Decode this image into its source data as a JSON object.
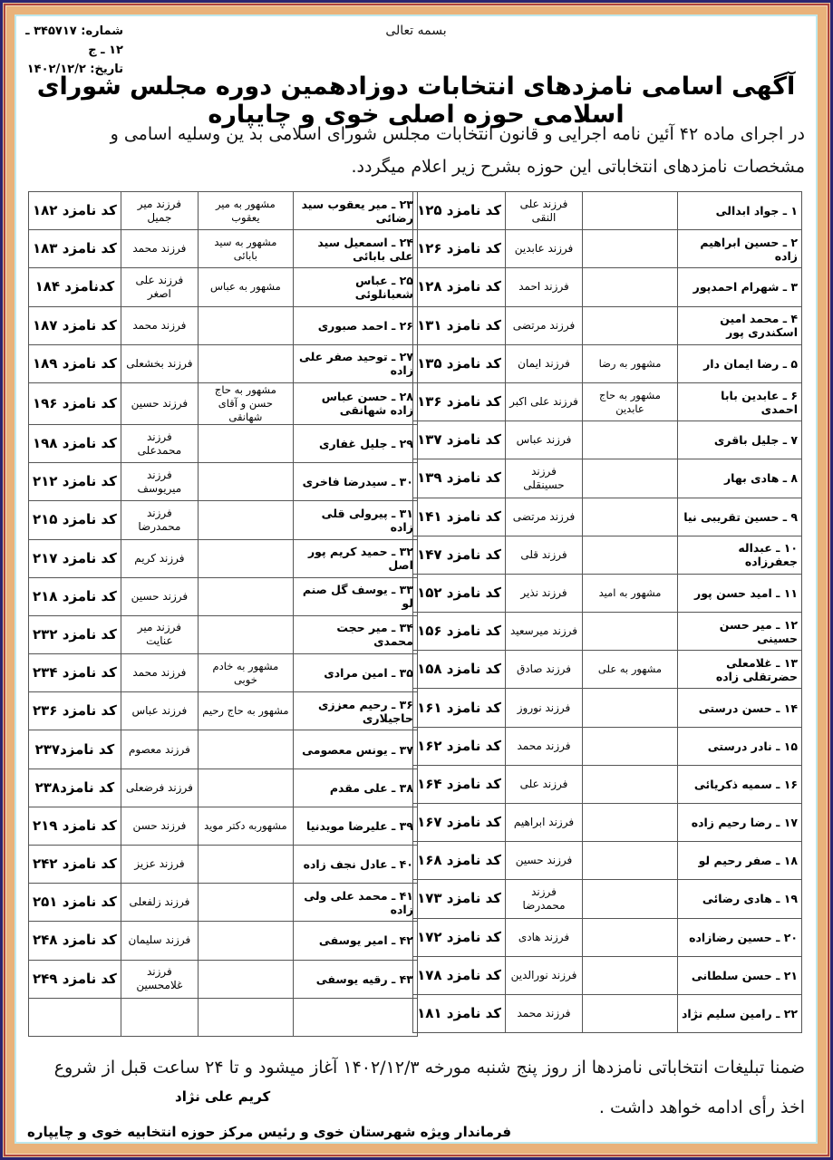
{
  "header": {
    "basmala": "بسمه تعالی",
    "number": "شماره: ۳۴۵۷۱۷ ـ ۱۲ ـ ج",
    "date": "تاریخ: ۱۴۰۲/۱۲/۲",
    "title": "آگهی اسامی نامزدهای انتخابات دوزادهمین دوره مجلس شورای اسلامی حوزه اصلی خوی و چایپاره",
    "intro": "در اجرای ماده ۴۲ آئین نامه اجرایی و قانون انتخابات مجلس شورای اسلامی بد ین وسلیه اسامی و مشخصات نامزدهای انتخاباتی این حوزه بشرح زیر اعلام میگردد."
  },
  "tables": {
    "right": [
      {
        "name": "۱ ـ جواد ابدالی",
        "nick": "",
        "father": "فرزند علی النقی",
        "code": "کد نامزد ۱۲۵"
      },
      {
        "name": "۲ ـ حسین ابراهیم زاده",
        "nick": "",
        "father": "فرزند عابدین",
        "code": "کد نامزد ۱۲۶"
      },
      {
        "name": "۳ ـ شهرام احمدپور",
        "nick": "",
        "father": "فرزند احمد",
        "code": "کد نامزد ۱۲۸"
      },
      {
        "name": "۴ ـ محمد امین اسکندری پور",
        "nick": "",
        "father": "فرزند مرتضی",
        "code": "کد نامزد ۱۳۱"
      },
      {
        "name": "۵ ـ رضا ایمان دار",
        "nick": "مشهور به رضا",
        "father": "فرزند ایمان",
        "code": "کد نامزد ۱۳۵"
      },
      {
        "name": "۶ ـ عابدین بابا احمدی",
        "nick": "مشهور به حاج عابدین",
        "father": "فرزند علی اکبر",
        "code": "کد نامزد ۱۳۶"
      },
      {
        "name": "۷ ـ جلیل باقری",
        "nick": "",
        "father": "فرزند عباس",
        "code": "کد نامزد ۱۳۷"
      },
      {
        "name": "۸ ـ هادی بهار",
        "nick": "",
        "father": "فرزند حسینقلی",
        "code": "کد نامزد ۱۳۹"
      },
      {
        "name": "۹ ـ حسین تقریبی نیا",
        "nick": "",
        "father": "فرزند مرتضی",
        "code": "کد نامزد ۱۴۱"
      },
      {
        "name": "۱۰ ـ عبداله جعفرزاده",
        "nick": "",
        "father": "فرزند قلی",
        "code": "کد نامزد ۱۴۷"
      },
      {
        "name": "۱۱ ـ امید حسن پور",
        "nick": "مشهور به امید",
        "father": "فرزند نذیر",
        "code": "کد نامزد ۱۵۲"
      },
      {
        "name": "۱۲ ـ میر حسن حسینی",
        "nick": "",
        "father": "فرزند میرسعید",
        "code": "کد نامزد ۱۵۶"
      },
      {
        "name": "۱۳ ـ غلامعلی حضرتقلی زاده",
        "nick": "مشهور به علی",
        "father": "فرزند صادق",
        "code": "کد نامزد ۱۵۸"
      },
      {
        "name": "۱۴ ـ حسن درستی",
        "nick": "",
        "father": "فرزند نوروز",
        "code": "کد نامزد ۱۶۱"
      },
      {
        "name": "۱۵ ـ نادر درستی",
        "nick": "",
        "father": "فرزند محمد",
        "code": "کد نامزد ۱۶۲"
      },
      {
        "name": "۱۶ ـ سمیه ذکریائی",
        "nick": "",
        "father": "فرزند علی",
        "code": "کد نامزد ۱۶۴"
      },
      {
        "name": "۱۷ ـ رضا رحیم زاده",
        "nick": "",
        "father": "فرزند ابراهیم",
        "code": "کد نامزد ۱۶۷"
      },
      {
        "name": "۱۸ ـ صفر رحیم لو",
        "nick": "",
        "father": "فرزند حسین",
        "code": "کد نامزد ۱۶۸"
      },
      {
        "name": "۱۹ ـ هادی رضائی",
        "nick": "",
        "father": "فرزند محمدرضا",
        "code": "کد نامزد ۱۷۳"
      },
      {
        "name": "۲۰ ـ حسین رضازاده",
        "nick": "",
        "father": "فرزند هادی",
        "code": "کد نامزد ۱۷۲"
      },
      {
        "name": "۲۱ ـ حسن سلطانی",
        "nick": "",
        "father": "فرزند نورالدین",
        "code": "کد نامزد ۱۷۸"
      },
      {
        "name": "۲۲ ـ رامین سلیم نژاد",
        "nick": "",
        "father": "فرزند محمد",
        "code": "کد نامزد ۱۸۱"
      }
    ],
    "left": [
      {
        "name": "۲۳ ـ میر یعقوب سید رضائی",
        "nick": "مشهور به میر یعقوب",
        "father": "فرزند میر جمیل",
        "code": "کد نامزد ۱۸۲"
      },
      {
        "name": "۲۴ ـ اسمعیل سید علی بابائی",
        "nick": "مشهور به سید بابائی",
        "father": "فرزند محمد",
        "code": "کد نامزد ۱۸۳"
      },
      {
        "name": "۲۵ ـ عباس شعبانلوئی",
        "nick": "مشهور به عباس",
        "father": "فرزند علی اصغر",
        "code": "کدنامزد ۱۸۴"
      },
      {
        "name": "۲۶ ـ احمد صبوری",
        "nick": "",
        "father": "فرزند محمد",
        "code": "کد نامزد ۱۸۷"
      },
      {
        "name": "۲۷ ـ توحید صفر علی زاده",
        "nick": "",
        "father": "فرزند بخشعلی",
        "code": "کد نامزد ۱۸۹"
      },
      {
        "name": "۲۸ ـ حسن عباس زاده شهانقی",
        "nick": "مشهور به حاج حسن و آقای شهانقی",
        "father": "فرزند حسین",
        "code": "کد نامزد ۱۹۶"
      },
      {
        "name": "۲۹ ـ جلیل غفاری",
        "nick": "",
        "father": "فرزند محمدعلی",
        "code": "کد نامزد ۱۹۸"
      },
      {
        "name": "۳۰ ـ سیدرضا فاخری",
        "nick": "",
        "father": "فرزند میریوسف",
        "code": "کد نامزد ۲۱۲"
      },
      {
        "name": "۳۱ ـ پیرولی قلی زاده",
        "nick": "",
        "father": "فرزند محمدرضا",
        "code": "کد نامزد ۲۱۵"
      },
      {
        "name": "۳۲ ـ حمید کریم پور اصل",
        "nick": "",
        "father": "فرزند کریم",
        "code": "کد نامزد ۲۱۷"
      },
      {
        "name": "۳۳ ـ یوسف گل صنم لو",
        "nick": "",
        "father": "فرزند حسین",
        "code": "کد نامزد ۲۱۸"
      },
      {
        "name": "۳۴ ـ میر حجت محمدی",
        "nick": "",
        "father": "فرزند میر عنایت",
        "code": "کد نامزد ۲۳۲"
      },
      {
        "name": "۳۵ ـ امین مرادی",
        "nick": "مشهور به خادم خوبی",
        "father": "فرزند محمد",
        "code": "کد نامزد ۲۳۴"
      },
      {
        "name": "۳۶ ـ رحیم معززی حاجیلاری",
        "nick": "مشهور به حاج رحیم",
        "father": "فرزند عباس",
        "code": "کد نامزد ۲۳۶"
      },
      {
        "name": "۳۷ ـ یونس معصومی",
        "nick": "",
        "father": "فرزند معصوم",
        "code": "کد نامزد۲۳۷"
      },
      {
        "name": "۳۸ ـ علی مقدم",
        "nick": "",
        "father": "فرزند فرضعلی",
        "code": "کد نامزد۲۳۸"
      },
      {
        "name": "۳۹ ـ علیرضا مویدنیا",
        "nick": "مشهوربه دکتر موید",
        "father": "فرزند حسن",
        "code": "کد نامزد ۲۱۹"
      },
      {
        "name": "۴۰ ـ عادل نجف زاده",
        "nick": "",
        "father": "فرزند عزیز",
        "code": "کد نامزد ۲۴۲"
      },
      {
        "name": "۴۱ ـ محمد علی ولی زاده",
        "nick": "",
        "father": "فرزند زلفعلی",
        "code": "کد نامزد ۲۵۱"
      },
      {
        "name": "۴۲ ـ امیر یوسفی",
        "nick": "",
        "father": "فرزند سلیمان",
        "code": "کد نامزد ۲۴۸"
      },
      {
        "name": "۴۳ ـ رقیه یوسفی",
        "nick": "",
        "father": "فرزند غلامحسین",
        "code": "کد نامزد ۲۴۹"
      },
      {
        "name": "",
        "nick": "",
        "father": "",
        "code": ""
      }
    ]
  },
  "footer": {
    "note": "ضمنا تبلیغات انتخاباتی نامزدها از روز پنج شنبه مورخه ۱۴۰۲/۱۲/۳ آغاز میشود و تا ۲۴ ساعت قبل از شروع اخذ رأی ادامه خواهد داشت .",
    "signer_name": "کریم علی نژاد",
    "signer_title": "فرماندار ویژه شهرستان خوی و رئیس مرکز حوزه انتخابیه خوی و چایپاره"
  },
  "colors": {
    "outer_border": "#2a2470",
    "frame": "#e9b27a",
    "frame_line": "#b0443a",
    "inner_border": "#bfe8ec"
  }
}
